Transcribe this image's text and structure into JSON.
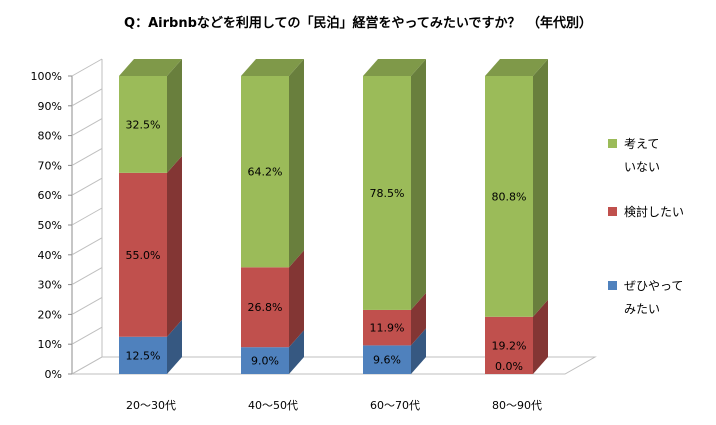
{
  "chart_data": {
    "type": "bar",
    "stacked": true,
    "percent_stacked": true,
    "three_d": true,
    "title": "Q：Airbnbなどを利用しての「民泊」経営をやってみたいですか？　（年代別）",
    "categories": [
      "20～30代",
      "40～50代",
      "60～70代",
      "80～90代"
    ],
    "series": [
      {
        "name": "ぜひやってみたい",
        "legend_lines": [
          "ぜひやって",
          "みたい"
        ],
        "color": "#4F81BD",
        "values": [
          12.5,
          9.0,
          9.6,
          0.0
        ],
        "labels": [
          "12.5%",
          "9.0%",
          "9.6%",
          "0.0%"
        ]
      },
      {
        "name": "検討したい",
        "legend_lines": [
          "検討したい"
        ],
        "color": "#C0504D",
        "values": [
          55.0,
          26.8,
          11.9,
          19.2
        ],
        "labels": [
          "55.0%",
          "26.8%",
          "11.9%",
          "19.2%"
        ]
      },
      {
        "name": "考えていない",
        "legend_lines": [
          "考えて",
          "いない"
        ],
        "color": "#9BBB59",
        "values": [
          32.5,
          64.2,
          78.5,
          80.8
        ],
        "labels": [
          "32.5%",
          "64.2%",
          "78.5%",
          "80.8%"
        ]
      }
    ],
    "y_ticks": [
      "0%",
      "10%",
      "20%",
      "30%",
      "40%",
      "50%",
      "60%",
      "70%",
      "80%",
      "90%",
      "100%"
    ],
    "ylim": [
      0,
      100
    ],
    "grid": false,
    "legend_position": "right"
  }
}
